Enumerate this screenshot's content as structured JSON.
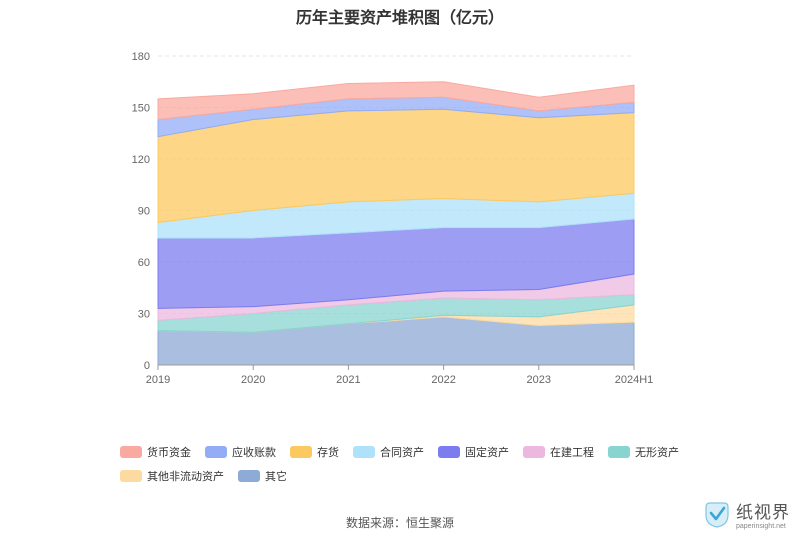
{
  "chart_data": {
    "type": "area",
    "stacked": true,
    "title": "历年主要资产堆积图（亿元）",
    "x": [
      "2019",
      "2020",
      "2021",
      "2022",
      "2023",
      "2024H1"
    ],
    "ylim": [
      0,
      180
    ],
    "yticks": [
      0,
      30,
      60,
      90,
      120,
      150,
      180
    ],
    "grid": true,
    "legend_position": "bottom",
    "series": [
      {
        "name": "其它",
        "color": "#8eaad6",
        "values": [
          20,
          19,
          24,
          28,
          23,
          25
        ]
      },
      {
        "name": "其他非流动资产",
        "color": "#fddba0",
        "values": [
          0,
          0,
          0,
          1,
          5,
          10
        ]
      },
      {
        "name": "无形资产",
        "color": "#88d4d0",
        "values": [
          6,
          11,
          11,
          10,
          10,
          6
        ]
      },
      {
        "name": "在建工程",
        "color": "#ecb8e0",
        "values": [
          7,
          4,
          3,
          4,
          6,
          12
        ]
      },
      {
        "name": "固定资产",
        "color": "#7c7cf0",
        "values": [
          41,
          40,
          39,
          37,
          36,
          32
        ]
      },
      {
        "name": "合同资产",
        "color": "#ade2fa",
        "values": [
          9,
          16,
          18,
          17,
          15,
          15
        ]
      },
      {
        "name": "存货",
        "color": "#fcc95f",
        "values": [
          50,
          53,
          53,
          52,
          49,
          47
        ]
      },
      {
        "name": "应收账款",
        "color": "#93acf5",
        "values": [
          10,
          6,
          7,
          7,
          4,
          6
        ]
      },
      {
        "name": "货币资金",
        "color": "#f9a9a0",
        "values": [
          12,
          9,
          9,
          9,
          8,
          10
        ]
      }
    ]
  },
  "legend": {
    "row1": [
      "货币资金",
      "应收账款",
      "存货",
      "合同资产",
      "固定资产",
      "在建工程",
      "无形资产"
    ],
    "row2": [
      "其他非流动资产",
      "其它"
    ]
  },
  "source": "数据来源：恒生聚源",
  "watermark": {
    "cn": "纸视界",
    "en": "paperinsight.net"
  }
}
